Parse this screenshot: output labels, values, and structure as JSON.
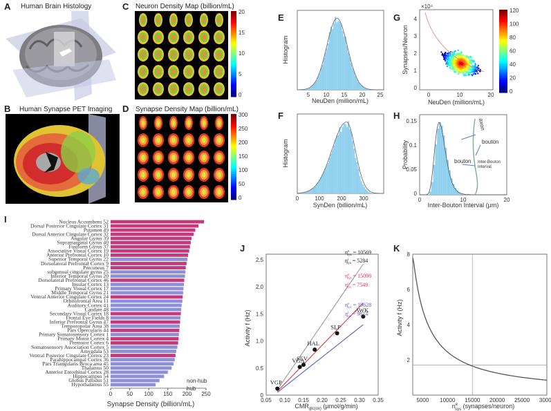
{
  "panels": {
    "A": {
      "letter": "A",
      "title": "Human Brain Histology"
    },
    "B": {
      "letter": "B",
      "title": "Human Synapse PET Imaging"
    },
    "C": {
      "letter": "C",
      "title": "Neuron Density Map (billion/mL)",
      "colorbar_ticks": [
        "20",
        "15",
        "10",
        "5",
        "0"
      ]
    },
    "D": {
      "letter": "D",
      "title": "Synapse Density Map (billion/mL)",
      "colorbar_ticks": [
        "300",
        "250",
        "200",
        "150",
        "100",
        "50",
        "0"
      ]
    },
    "E": {
      "letter": "E",
      "ylabel": "Histogram",
      "xlabel": "NeuDen (million/mL)",
      "xticks": [
        "5",
        "10",
        "15",
        "20",
        "25"
      ]
    },
    "F": {
      "letter": "F",
      "ylabel": "Histogram",
      "xlabel": "SynDen (billion/mL)",
      "xticks": [
        "0",
        "100",
        "200",
        "300"
      ]
    },
    "G": {
      "letter": "G",
      "ylabel": "Synapses/Neuron",
      "xlabel": "NeuDen (million/mL)",
      "multiplier": "×10⁴",
      "yticks": [
        "4",
        "3",
        "2",
        "1",
        "0"
      ],
      "xticks": [
        "0",
        "10",
        "20"
      ],
      "colorbar_ticks": [
        "120",
        "100",
        "80",
        "60",
        "40",
        "20",
        "0"
      ]
    },
    "H": {
      "letter": "H",
      "ylabel": "Probability",
      "xlabel": "Inter-Bouton Interval (μm)",
      "yticks": [
        "0.15",
        "0.1",
        "0.05",
        "0"
      ],
      "xticks": [
        "0",
        "10",
        "20"
      ],
      "annotations": {
        "axon": "axon",
        "bouton1": "bouton",
        "bouton2": "bouton",
        "interval": "Inter-Bouton\nInterval"
      }
    },
    "I": {
      "letter": "I",
      "xlabel": "Synapse Density (billion/mL)",
      "legend": {
        "nonhub": "non-hub",
        "hub": "hub"
      }
    },
    "J": {
      "letter": "J",
      "ylabel": "Activity f (Hz)",
      "xlabel": "CMR",
      "xlabel_sub": "glc(ox)",
      "xlabel_unit": " (μmol/g/min)",
      "yticks": [
        "2.5",
        "2.0",
        "1.5",
        "1.0",
        "0.5",
        "0"
      ],
      "xticks": [
        "0.05",
        "0.10",
        "0.15",
        "0.20",
        "0.25",
        "0.30",
        "0.35"
      ],
      "legend": [
        {
          "e": "n",
          "sup": "e",
          "sub": "sys",
          "v": " = 10569",
          "color": "#222"
        },
        {
          "e": "n",
          "sup": "i",
          "sub": "sys",
          "v": " = 5284",
          "color": "#222"
        },
        {
          "e": "n",
          "sup": "e",
          "sub": "sys",
          "v": " = 15098",
          "color": "#e0304a"
        },
        {
          "e": "n",
          "sup": "i",
          "sub": "sys",
          "v": " = 7549",
          "color": "#e0304a"
        },
        {
          "e": "n",
          "sup": "e",
          "sub": "sys",
          "v": " = 19628",
          "color": "#5a5ab8"
        },
        {
          "e": "n",
          "sup": "i",
          "sub": "sys",
          "v": " = 9814",
          "color": "#5a5ab8"
        }
      ]
    },
    "K": {
      "letter": "K",
      "ylabel": "Activity f (Hz)",
      "xlabel_pre": "n",
      "xlabel_sup": "e",
      "xlabel_sub": "sys",
      "xlabel_unit": " (synapses/neuron)",
      "yticks": [
        "8",
        "6",
        "4",
        "2"
      ],
      "xticks": [
        "5000",
        "10000",
        "15000",
        "20000",
        "25000",
        "30000"
      ]
    }
  },
  "chart_data": [
    {
      "type": "bar",
      "panel": "I",
      "title": "",
      "xlabel": "Synapse Density (billion/mL)",
      "ylabel": "",
      "xlim": [
        0,
        250
      ],
      "xticks": [
        "0",
        "50",
        "100",
        "150",
        "200",
        "250"
      ],
      "categories": [
        "Nucleus Accumbens 52",
        "Dorsal Posterior Cingulate Cortex 31",
        "Putamen 49",
        "Dorsal Anterior Cingulate Cortex 32",
        "Angular Gyrus 39",
        "Supramarginal Gyrus 40",
        "Fusiform Gyrus 37",
        "Associative Visual Cortex 19",
        "Anterior Prefrontal Cortex 10",
        "Superior Temporal Gyrus 22",
        "Dorsolateral Prefrontal Cortex 9",
        "Precuneus 7",
        "subgenual cingulate gyrus 25",
        "Inferior Temporal Gyrus 20",
        "Dorsolateral Prefrontal Cortex 46",
        "Insular Cortex 13",
        "Primary Visual Cortex 17",
        "Middle Temporal Gyrus 21",
        "Ventral Anterior Cingulate Cortex 24",
        "Orbitofrontal Area 11",
        "Auditory Cortex 41",
        "Caudate 48",
        "Secondary Visual Cortex 18",
        "Frontal Eye Fields 8",
        "Inferior Prefrontal Gyrus 47",
        "Temporopolar Area 38",
        "Pars Opercularis 44",
        "Primary Somatosensory Cortex 1",
        "Primary Motor Cortex 4",
        "Premotor Cortex 6",
        "Somatosensory Association Cortex 5",
        "Amygdala 53",
        "Ventral Posterior Cingulate Cortex 23",
        "Parahippocampal Cortex 36",
        "Pars Triangularis Broca area 45",
        "Thalamus 50",
        "Anterior Entorhinal Cortex 28",
        "Hippocampus 54",
        "Globus Pallidus 51",
        "Hypothalamus 55"
      ],
      "values": [
        245,
        230,
        222,
        218,
        212,
        210,
        208,
        206,
        203,
        201,
        199,
        197,
        196,
        195,
        193,
        192,
        191,
        190,
        189,
        188,
        186,
        185,
        184,
        183,
        182,
        181,
        180,
        179,
        178,
        177,
        175,
        172,
        170,
        168,
        165,
        160,
        150,
        140,
        128,
        118
      ],
      "hub": [
        1,
        1,
        1,
        1,
        1,
        1,
        1,
        1,
        1,
        0,
        1,
        1,
        0,
        0,
        1,
        0,
        0,
        0,
        1,
        0,
        0,
        0,
        1,
        0,
        1,
        0,
        1,
        0,
        1,
        1,
        0,
        0,
        1,
        0,
        0,
        0,
        0,
        0,
        0,
        0
      ]
    },
    {
      "type": "line",
      "panel": "J",
      "xlim": [
        0.05,
        0.35
      ],
      "ylim": [
        0,
        2.6
      ],
      "points": [
        {
          "label": "VGP",
          "x": 0.08,
          "y": 0.12
        },
        {
          "label": "VGA",
          "x": 0.14,
          "y": 0.52
        },
        {
          "label": "SEV",
          "x": 0.15,
          "y": 0.56
        },
        {
          "label": "HAL",
          "x": 0.18,
          "y": 0.84
        },
        {
          "label": "SLP",
          "x": 0.24,
          "y": 1.14
        },
        {
          "label": "AWK",
          "x": 0.31,
          "y": 1.45
        }
      ],
      "series": [
        {
          "name": "10569",
          "color": "#999",
          "x": [
            0.08,
            0.31
          ],
          "y": [
            0.1,
            2.42
          ]
        },
        {
          "name": "15098",
          "color": "#e0304a",
          "x": [
            0.08,
            0.31
          ],
          "y": [
            0.07,
            1.7
          ]
        },
        {
          "name": "19628",
          "color": "#5a5ab8",
          "x": [
            0.08,
            0.31
          ],
          "y": [
            0.05,
            1.3
          ]
        }
      ]
    },
    {
      "type": "line",
      "panel": "K",
      "xlim": [
        3000,
        30000
      ],
      "ylim": [
        0,
        8
      ],
      "series": [
        {
          "name": "f",
          "color": "#555",
          "x": [
            3000,
            4000,
            5000,
            7000,
            10000,
            15000,
            20000,
            25000,
            30000
          ],
          "y": [
            7.6,
            5.8,
            4.6,
            3.3,
            2.4,
            1.65,
            1.25,
            1.0,
            0.85
          ]
        }
      ],
      "reference": {
        "x": 15000,
        "y": 1.7
      }
    }
  ]
}
